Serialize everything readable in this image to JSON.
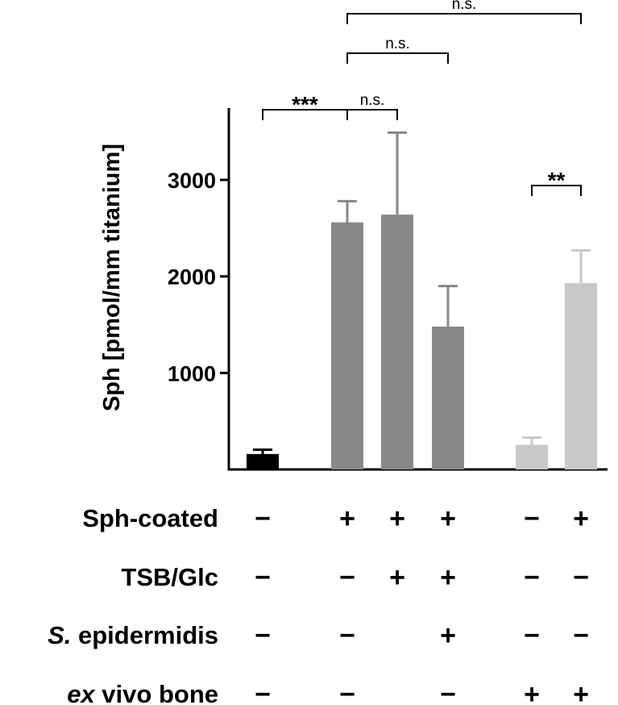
{
  "chart_data": {
    "type": "bar",
    "ylabel": "Sph [pmol/mm titanium]",
    "ylim": [
      0,
      3650
    ],
    "yticks": [
      1000,
      2000,
      3000
    ],
    "yticklabels": [
      "1000",
      "2000",
      "3000"
    ],
    "groups": [
      [
        0
      ],
      [
        1,
        2,
        3
      ],
      [
        4,
        5
      ]
    ],
    "bars": [
      {
        "value": 160,
        "error": 45,
        "color": "#000000"
      },
      {
        "value": 2560,
        "error": 220,
        "color": "#888888"
      },
      {
        "value": 2640,
        "error": 850,
        "color": "#888888"
      },
      {
        "value": 1480,
        "error": 420,
        "color": "#888888"
      },
      {
        "value": 255,
        "error": 75,
        "color": "#c8c8c8"
      },
      {
        "value": 1930,
        "error": 340,
        "color": "#c8c8c8"
      }
    ],
    "comparisons": [
      {
        "from": 0,
        "to": 1,
        "label": "***",
        "level": 0
      },
      {
        "from": 1,
        "to": 2,
        "label": "n.s.",
        "level": 0
      },
      {
        "from": 1,
        "to": 3,
        "label": "n.s.",
        "level": 1
      },
      {
        "from": 1,
        "to": 5,
        "label": "n.s.",
        "level": 2
      },
      {
        "from": 4,
        "to": 5,
        "label": "**",
        "level": -1
      }
    ],
    "condition_rows": [
      {
        "label": "Sph-coated",
        "italic": [],
        "values": [
          "−",
          "+",
          "+",
          "+",
          "−",
          "+"
        ]
      },
      {
        "label": "TSB/Glc",
        "italic": [],
        "values": [
          "−",
          "−",
          "+",
          "+",
          "−",
          "−"
        ]
      },
      {
        "label": "S. epidermidis",
        "italic": [
          0
        ],
        "values": [
          "−",
          "−",
          "",
          "+",
          "−",
          "−"
        ]
      },
      {
        "label": "ex vivo bone",
        "italic": [
          0
        ],
        "values": [
          "−",
          "−",
          "",
          "−",
          "+",
          "+"
        ]
      }
    ]
  }
}
